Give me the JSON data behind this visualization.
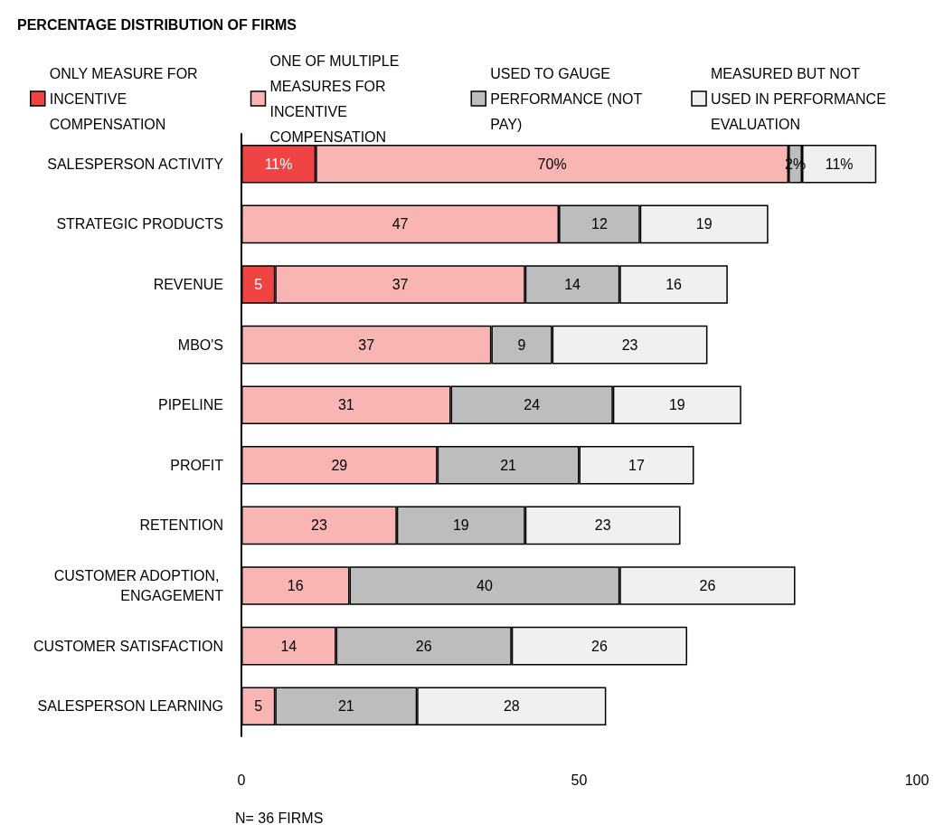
{
  "chart_data": {
    "type": "bar",
    "orientation": "horizontal",
    "stacked": true,
    "title": "PERCENTAGE DISTRIBUTION OF FIRMS",
    "categories": [
      "SALESPERSON ACTIVITY",
      "STRATEGIC PRODUCTS",
      "REVENUE",
      "MBO'S",
      "PIPELINE",
      "PROFIT",
      "RETENTION",
      "CUSTOMER ADOPTION, ENGAGEMENT",
      "CUSTOMER SATISFACTION",
      "SALESPERSON LEARNING"
    ],
    "series": [
      {
        "name": "ONLY MEASURE FOR INCENTIVE COMPENSATION",
        "color": "#f04444",
        "values": [
          11,
          null,
          5,
          null,
          null,
          null,
          null,
          null,
          null,
          null
        ],
        "value_labels": [
          "11%",
          null,
          "5",
          null,
          null,
          null,
          null,
          null,
          null,
          null
        ]
      },
      {
        "name": "ONE OF MULTIPLE MEASURES FOR INCENTIVE COMPENSATION",
        "color": "#f9b4b4",
        "values": [
          70,
          47,
          37,
          37,
          31,
          29,
          23,
          16,
          14,
          5
        ],
        "value_labels": [
          "70%",
          "47",
          "37",
          "37",
          "31",
          "29",
          "23",
          "16",
          "14",
          "5"
        ]
      },
      {
        "name": "USED TO GAUGE PERFORMANCE (NOT PAY)",
        "color": "#bdbdbd",
        "values": [
          2,
          12,
          14,
          9,
          24,
          21,
          19,
          40,
          26,
          21
        ],
        "value_labels": [
          "2%",
          "12",
          "14",
          "9",
          "24",
          "21",
          "19",
          "40",
          "26",
          "21"
        ]
      },
      {
        "name": "MEASURED BUT NOT USED IN PERFORMANCE EVALUATION",
        "color": "#f0f0f0",
        "values": [
          11,
          19,
          16,
          23,
          19,
          17,
          23,
          26,
          26,
          28
        ],
        "value_labels": [
          "11%",
          "19",
          "16",
          "23",
          "19",
          "17",
          "23",
          "26",
          "26",
          "28"
        ]
      }
    ],
    "xlim": [
      0,
      100
    ],
    "xticks": [
      0,
      50,
      100
    ],
    "grid": false,
    "legend": "top",
    "annotations": [
      "N= 36 FIRMS"
    ]
  }
}
